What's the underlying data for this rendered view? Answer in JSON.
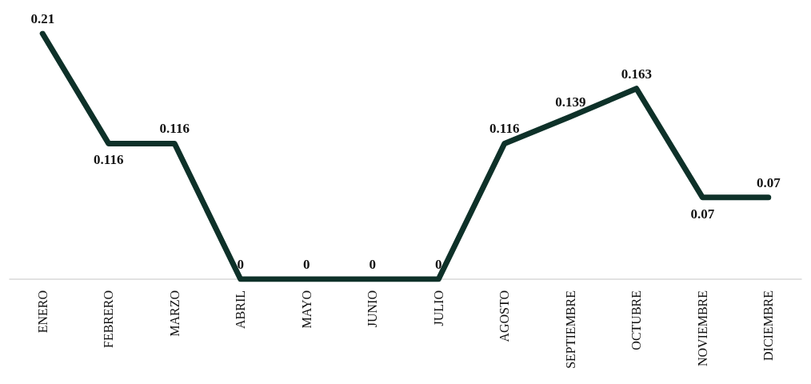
{
  "chart_data": {
    "type": "line",
    "categories": [
      "ENERO",
      "FEBRERO",
      "MARZO",
      "ABRIL",
      "MAYO",
      "JUNIO",
      "JULIO",
      "AGOSTO",
      "SEPTIEMBRE",
      "OCTUBRE",
      "NOVIEMBRE",
      "DICIEMBRE"
    ],
    "series": [
      {
        "color": "#0e3129",
        "values": [
          0.21,
          0.116,
          0.116,
          0,
          0,
          0,
          0,
          0.116,
          0.139,
          0.163,
          0.07,
          0.07
        ]
      }
    ],
    "data_labels": true,
    "grid": false,
    "marker": "none",
    "line_style": "solid"
  }
}
